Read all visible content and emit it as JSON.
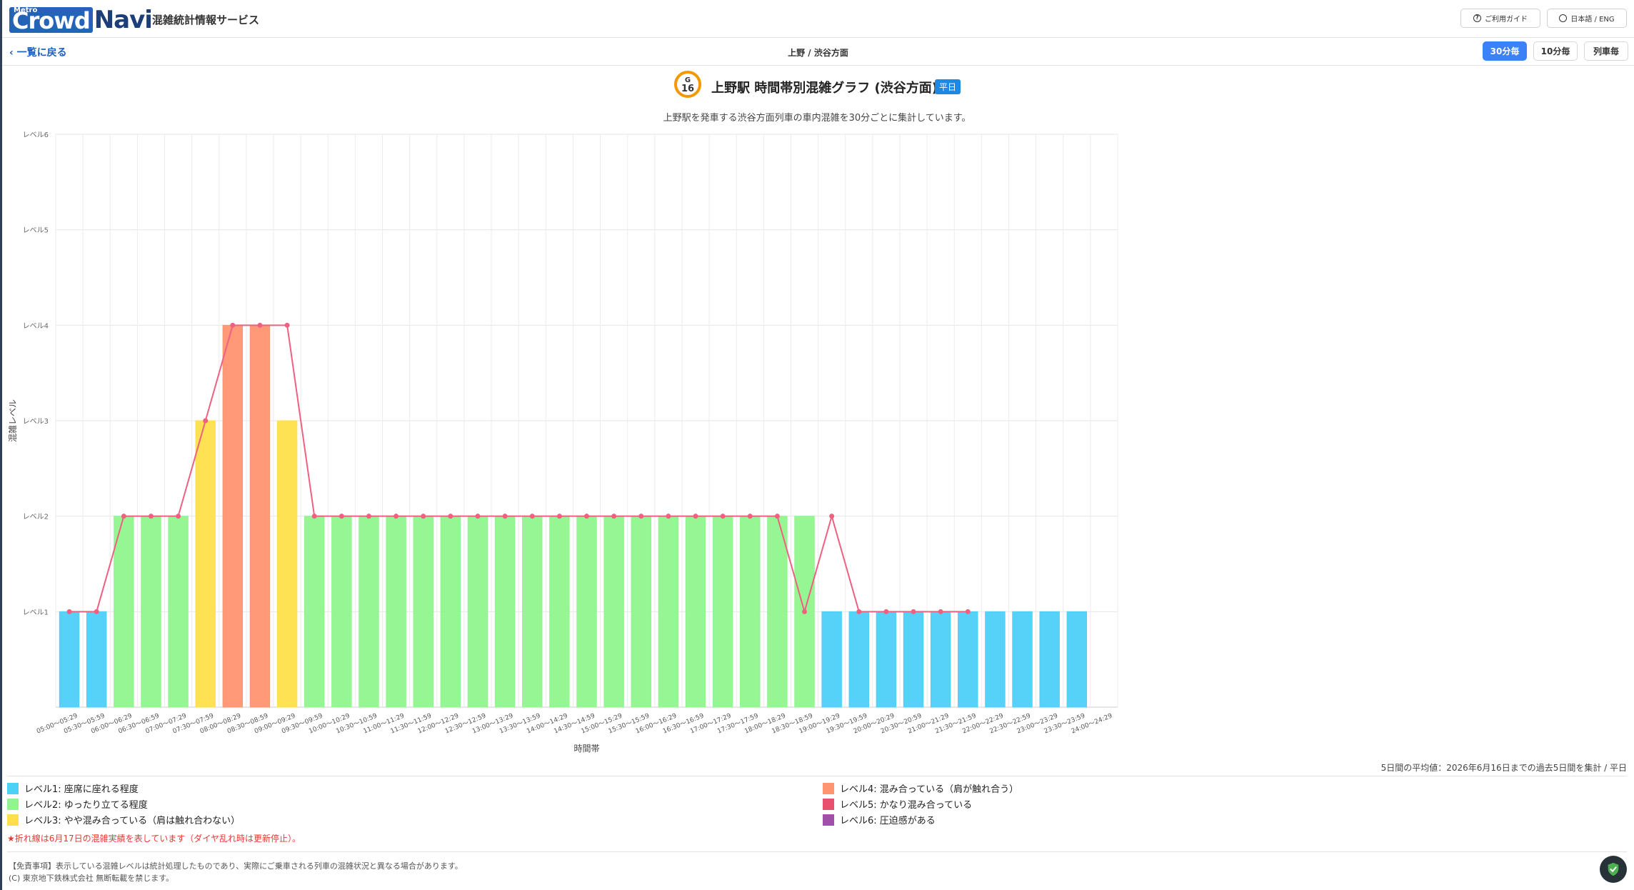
{
  "header": {
    "logo_metro": "Metro",
    "logo_crowd": "Crowd",
    "logo_navi": "Navi",
    "service_name": "混雑統計情報サービス",
    "guide_label": "ご利用ガイド",
    "lang_label": "日本語 / ENG"
  },
  "subbar": {
    "back_label": "一覧に戻る",
    "breadcrumb": "上野 / 渋谷方面",
    "interval_options": [
      "30分毎",
      "10分毎",
      "列車毎"
    ],
    "active_interval": "30分毎"
  },
  "station": {
    "line_letter": "G",
    "number": "16",
    "line_color": "#f39800",
    "title": "上野駅 時間帯別混雑グラフ (渋谷方面)",
    "day_badge": "平日",
    "subtitle": "上野駅を発車する渋谷方面列車の車内混雑を30分ごとに集計しています。"
  },
  "chart_data": {
    "type": "bar",
    "xlabel": "時間帯",
    "ylabel": "混雑レベル",
    "ylim": [
      0,
      6
    ],
    "yticks": [
      "",
      "レベル1",
      "レベル2",
      "レベル3",
      "レベル4",
      "レベル5",
      "レベル6"
    ],
    "grid": true,
    "categories": [
      "05:00〜05:29",
      "05:30〜05:59",
      "06:00〜06:29",
      "06:30〜06:59",
      "07:00〜07:29",
      "07:30〜07:59",
      "08:00〜08:29",
      "08:30〜08:59",
      "09:00〜09:29",
      "09:30〜09:59",
      "10:00〜10:29",
      "10:30〜10:59",
      "11:00〜11:29",
      "11:30〜11:59",
      "12:00〜12:29",
      "12:30〜12:59",
      "13:00〜13:29",
      "13:30〜13:59",
      "14:00〜14:29",
      "14:30〜14:59",
      "15:00〜15:29",
      "15:30〜15:59",
      "16:00〜16:29",
      "16:30〜16:59",
      "17:00〜17:29",
      "17:30〜17:59",
      "18:00〜18:29",
      "18:30〜18:59",
      "19:00〜19:29",
      "19:30〜19:59",
      "20:00〜20:29",
      "20:30〜20:59",
      "21:00〜21:29",
      "21:30〜21:59",
      "22:00〜22:29",
      "22:30〜22:59",
      "23:00〜23:29",
      "23:30〜23:59",
      "24:00〜24:29"
    ],
    "series": [
      {
        "type": "bar",
        "values": [
          1,
          1,
          2,
          2,
          2,
          3,
          4,
          4,
          3,
          2,
          2,
          2,
          2,
          2,
          2,
          2,
          2,
          2,
          2,
          2,
          2,
          2,
          2,
          2,
          2,
          2,
          2,
          2,
          1,
          1,
          1,
          1,
          1,
          1,
          1,
          1,
          1,
          1,
          null
        ]
      },
      {
        "type": "line",
        "color": "#f06080",
        "values": [
          1,
          1,
          2,
          2,
          2,
          3,
          4,
          4,
          4,
          2,
          2,
          2,
          2,
          2,
          2,
          2,
          2,
          2,
          2,
          2,
          2,
          2,
          2,
          2,
          2,
          2,
          2,
          1,
          2,
          1,
          1,
          1,
          1,
          1,
          null,
          null,
          null,
          null,
          null
        ]
      }
    ],
    "level_colors": [
      "#4dd0f8",
      "#90f58e",
      "#ffe04a",
      "#ff9470",
      "#e8506e",
      "#a050a8"
    ]
  },
  "average_note": "5日間の平均値：2026年6月16日までの過去5日間を集計 / 平日",
  "legend": [
    {
      "label": "レベル1: 座席に座れる程度",
      "color": "#4dd0f8"
    },
    {
      "label": "レベル2: ゆったり立てる程度",
      "color": "#90f58e"
    },
    {
      "label": "レベル3: やや混み合っている（肩は触れ合わない）",
      "color": "#ffe04a"
    },
    {
      "label": "レベル4: 混み合っている（肩が触れ合う）",
      "color": "#ff9470"
    },
    {
      "label": "レベル5: かなり混み合っている",
      "color": "#e8506e"
    },
    {
      "label": "レベル6: 圧迫感がある",
      "color": "#a050a8"
    }
  ],
  "line_note": "★折れ線は6月17日の混雑実績を表しています（ダイヤ乱れ時は更新停止）。",
  "disclaimer_lines": [
    "【免責事項】表示している混雑レベルは統計処理したものであり、実際にご乗車される列車の混雑状況と異なる場合があります。",
    "(C) 東京地下鉄株式会社 無断転載を禁じます。"
  ]
}
